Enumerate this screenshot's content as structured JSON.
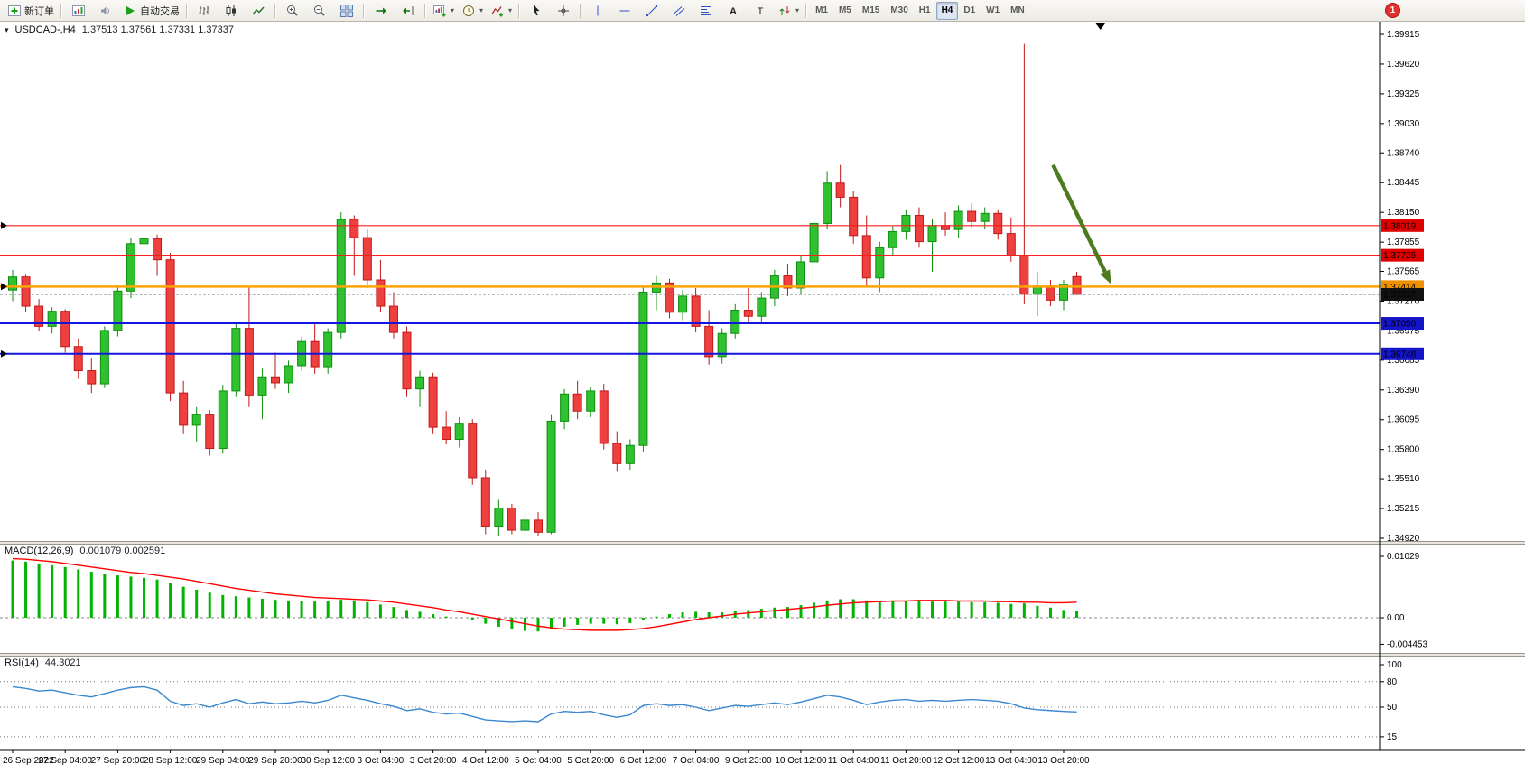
{
  "toolbar": {
    "groups": [
      [
        {
          "icon": "new-order-icon",
          "label": "新订单"
        }
      ],
      [
        {
          "icon": "charts-icon"
        },
        {
          "icon": "alerts-icon"
        },
        {
          "icon": "autotrading-icon",
          "label": "自动交易"
        }
      ],
      [
        {
          "icon": "bar-chart-icon"
        },
        {
          "icon": "candle-chart-icon"
        },
        {
          "icon": "line-chart-icon"
        }
      ],
      [
        {
          "icon": "zoom-in-icon"
        },
        {
          "icon": "zoom-out-icon"
        },
        {
          "icon": "tile-windows-icon"
        }
      ],
      [
        {
          "icon": "auto-scroll-icon"
        },
        {
          "icon": "chart-shift-icon"
        }
      ],
      [
        {
          "icon": "new-chart-icon",
          "dropdown": true
        },
        {
          "icon": "profiles-icon",
          "dropdown": true
        },
        {
          "icon": "indicators-icon",
          "dropdown": true
        }
      ],
      [
        {
          "icon": "cursor-icon"
        },
        {
          "icon": "crosshair-icon"
        }
      ],
      [
        {
          "icon": "vertical-line-icon"
        },
        {
          "icon": "horizontal-line-icon"
        },
        {
          "icon": "trendline-icon"
        },
        {
          "icon": "channel-icon"
        },
        {
          "icon": "fibonacci-icon"
        },
        {
          "icon": "text-icon"
        },
        {
          "icon": "label-icon"
        },
        {
          "icon": "arrows-icon",
          "dropdown": true
        }
      ]
    ],
    "timeframes": [
      "M1",
      "M5",
      "M15",
      "M30",
      "H1",
      "H4",
      "D1",
      "W1",
      "MN"
    ],
    "active_timeframe": "H4",
    "notification_badge": "1"
  },
  "chart_data": {
    "type": "candlestick",
    "title": "USDCAD-,H4",
    "ohlc_display": "1.37513 1.37561 1.37331 1.37337",
    "menu_icon": "▾",
    "colors": {
      "bull": "#2FC12F",
      "bull_border": "#0E8F0E",
      "bear": "#EF4040",
      "bear_border": "#C01818",
      "background": "#FFFFFF"
    },
    "price_axis": {
      "labels": [
        "1.39915",
        "1.39620",
        "1.39325",
        "1.39030",
        "1.38740",
        "1.38445",
        "1.38150",
        "1.37855",
        "1.37565",
        "1.37270",
        "1.36975",
        "1.36685",
        "1.36390",
        "1.36095",
        "1.35800",
        "1.35510",
        "1.35215",
        "1.34920"
      ],
      "max": 1.39915,
      "min": 1.3492
    },
    "hlines": [
      {
        "price": 1.38019,
        "label": "1.38019",
        "color": "#FF1E1E",
        "width": 1.2,
        "badge_bg": "#DF0000",
        "name": "resistance-line-1",
        "edge_marker": true
      },
      {
        "price": 1.37725,
        "label": "1.37725",
        "color": "#FF1E1E",
        "width": 1.2,
        "badge_bg": "#DF0000",
        "name": "resistance-line-2",
        "edge_marker": false
      },
      {
        "price": 1.37414,
        "label": "1.37414",
        "color": "#FFA500",
        "width": 2.5,
        "badge_bg": "#EE9000",
        "name": "pivot-line",
        "edge_marker": true
      },
      {
        "price": 1.3705,
        "label": "1.37050",
        "color": "#1414E0",
        "width": 2,
        "badge_bg": "#1414C8",
        "name": "support-line-1",
        "edge_marker": false
      },
      {
        "price": 1.36748,
        "label": "1.36748",
        "color": "#1414E0",
        "width": 2,
        "badge_bg": "#1414C8",
        "name": "support-line-2",
        "edge_marker": true
      }
    ],
    "current_price": {
      "price": 1.37337,
      "label": "1.37337",
      "badge_bg": "#111111",
      "line_color": "#777777"
    },
    "arrow_annotation": {
      "from_bar": 79.2,
      "from_price": 1.3862,
      "to_bar": 83.6,
      "to_price": 1.3744,
      "color": "#4E7B1F"
    },
    "chart_shift_marker_bar": 82.8,
    "bars_per_label": 4,
    "time_labels": [
      "26 Sep 2022",
      "27 Sep 04:00",
      "27 Sep 20:00",
      "28 Sep 12:00",
      "29 Sep 04:00",
      "29 Sep 20:00",
      "30 Sep 12:00",
      "3 Oct 04:00",
      "3 Oct 20:00",
      "4 Oct 12:00",
      "5 Oct 04:00",
      "5 Oct 20:00",
      "6 Oct 12:00",
      "7 Oct 04:00",
      "9 Oct 23:00",
      "10 Oct 12:00",
      "11 Oct 04:00",
      "11 Oct 20:00",
      "12 Oct 12:00",
      "13 Oct 04:00",
      "13 Oct 20:00"
    ],
    "candles": [
      [
        1.3738,
        1.3758,
        1.3727,
        1.3751
      ],
      [
        1.3751,
        1.3754,
        1.3716,
        1.3722
      ],
      [
        1.3722,
        1.3729,
        1.3697,
        1.3702
      ],
      [
        1.3702,
        1.3721,
        1.3695,
        1.3717
      ],
      [
        1.3717,
        1.3719,
        1.3676,
        1.3682
      ],
      [
        1.3682,
        1.369,
        1.365,
        1.3658
      ],
      [
        1.3658,
        1.3671,
        1.3636,
        1.3645
      ],
      [
        1.3645,
        1.3702,
        1.3641,
        1.3698
      ],
      [
        1.3698,
        1.3742,
        1.3692,
        1.3737
      ],
      [
        1.3737,
        1.379,
        1.373,
        1.3784
      ],
      [
        1.3784,
        1.3832,
        1.3776,
        1.3789
      ],
      [
        1.3789,
        1.3793,
        1.3752,
        1.3768
      ],
      [
        1.3768,
        1.3775,
        1.3628,
        1.3636
      ],
      [
        1.3636,
        1.3648,
        1.3596,
        1.3604
      ],
      [
        1.3604,
        1.3622,
        1.3588,
        1.3615
      ],
      [
        1.3615,
        1.3619,
        1.3574,
        1.3581
      ],
      [
        1.3581,
        1.3644,
        1.3576,
        1.3638
      ],
      [
        1.3638,
        1.3706,
        1.3632,
        1.37
      ],
      [
        1.37,
        1.3742,
        1.3622,
        1.3634
      ],
      [
        1.3634,
        1.366,
        1.361,
        1.3652
      ],
      [
        1.3652,
        1.3676,
        1.364,
        1.3646
      ],
      [
        1.3646,
        1.3668,
        1.3636,
        1.3663
      ],
      [
        1.3663,
        1.3692,
        1.3658,
        1.3687
      ],
      [
        1.3687,
        1.3705,
        1.3655,
        1.3662
      ],
      [
        1.3662,
        1.37,
        1.3655,
        1.3696
      ],
      [
        1.3696,
        1.3815,
        1.369,
        1.3808
      ],
      [
        1.3808,
        1.3812,
        1.3752,
        1.379
      ],
      [
        1.379,
        1.3798,
        1.374,
        1.3748
      ],
      [
        1.3748,
        1.3768,
        1.3716,
        1.3722
      ],
      [
        1.3722,
        1.3736,
        1.369,
        1.3696
      ],
      [
        1.3696,
        1.3702,
        1.3632,
        1.364
      ],
      [
        1.364,
        1.3658,
        1.3622,
        1.3652
      ],
      [
        1.3652,
        1.3656,
        1.3596,
        1.3602
      ],
      [
        1.3602,
        1.3618,
        1.3585,
        1.359
      ],
      [
        1.359,
        1.3612,
        1.3582,
        1.3606
      ],
      [
        1.3606,
        1.361,
        1.3545,
        1.3552
      ],
      [
        1.3552,
        1.356,
        1.3496,
        1.3504
      ],
      [
        1.3504,
        1.353,
        1.3494,
        1.3522
      ],
      [
        1.3522,
        1.3526,
        1.3496,
        1.35
      ],
      [
        1.35,
        1.3516,
        1.3492,
        1.351
      ],
      [
        1.351,
        1.3518,
        1.3494,
        1.3498
      ],
      [
        1.3498,
        1.3615,
        1.3496,
        1.3608
      ],
      [
        1.3608,
        1.364,
        1.36,
        1.3635
      ],
      [
        1.3635,
        1.3648,
        1.361,
        1.3618
      ],
      [
        1.3618,
        1.3642,
        1.3612,
        1.3638
      ],
      [
        1.3638,
        1.3645,
        1.358,
        1.3586
      ],
      [
        1.3586,
        1.3598,
        1.3558,
        1.3566
      ],
      [
        1.3566,
        1.359,
        1.356,
        1.3584
      ],
      [
        1.3584,
        1.3742,
        1.3578,
        1.3736
      ],
      [
        1.3736,
        1.3752,
        1.3718,
        1.3745
      ],
      [
        1.3745,
        1.3749,
        1.371,
        1.3716
      ],
      [
        1.3716,
        1.3738,
        1.3708,
        1.3732
      ],
      [
        1.3732,
        1.374,
        1.3696,
        1.3702
      ],
      [
        1.3702,
        1.3718,
        1.3664,
        1.3672
      ],
      [
        1.3672,
        1.37,
        1.3665,
        1.3695
      ],
      [
        1.3695,
        1.3724,
        1.369,
        1.3718
      ],
      [
        1.3718,
        1.374,
        1.3706,
        1.3712
      ],
      [
        1.3712,
        1.3736,
        1.3704,
        1.373
      ],
      [
        1.373,
        1.3758,
        1.3722,
        1.3752
      ],
      [
        1.3752,
        1.3764,
        1.3732,
        1.374
      ],
      [
        1.374,
        1.3772,
        1.3734,
        1.3766
      ],
      [
        1.3766,
        1.381,
        1.376,
        1.3804
      ],
      [
        1.3804,
        1.3856,
        1.3798,
        1.3844
      ],
      [
        1.3844,
        1.3862,
        1.382,
        1.383
      ],
      [
        1.383,
        1.3836,
        1.3784,
        1.3792
      ],
      [
        1.3792,
        1.3812,
        1.3742,
        1.375
      ],
      [
        1.375,
        1.3786,
        1.3736,
        1.378
      ],
      [
        1.378,
        1.3802,
        1.3772,
        1.3796
      ],
      [
        1.3796,
        1.3818,
        1.3788,
        1.3812
      ],
      [
        1.3812,
        1.382,
        1.378,
        1.3786
      ],
      [
        1.3786,
        1.3808,
        1.3756,
        1.3802
      ],
      [
        1.3802,
        1.3815,
        1.3792,
        1.3798
      ],
      [
        1.3798,
        1.3822,
        1.379,
        1.3816
      ],
      [
        1.3816,
        1.3824,
        1.38,
        1.3806
      ],
      [
        1.3806,
        1.382,
        1.3798,
        1.3814
      ],
      [
        1.3814,
        1.3818,
        1.3788,
        1.3794
      ],
      [
        1.3794,
        1.381,
        1.3766,
        1.3772
      ],
      [
        1.3772,
        1.3982,
        1.3724,
        1.3734
      ],
      [
        1.3734,
        1.3756,
        1.3712,
        1.3742
      ],
      [
        1.3742,
        1.3748,
        1.3722,
        1.3728
      ],
      [
        1.3728,
        1.3748,
        1.3718,
        1.3744
      ],
      [
        1.37513,
        1.37561,
        1.37331,
        1.37337
      ]
    ],
    "indicators": [
      {
        "name": "MACD",
        "title": "MACD(12,26,9)",
        "values_display": "0.001079 0.002591",
        "scale_labels": [
          "0.01029",
          "0.00",
          "-0.004453"
        ],
        "scale_values": [
          0.01029,
          0,
          -0.004453
        ],
        "histogram_color": "#00B400",
        "signal_color": "#FF0000",
        "histogram": [
          0.0096,
          0.0094,
          0.0091,
          0.0088,
          0.0085,
          0.0081,
          0.0077,
          0.0074,
          0.0071,
          0.0069,
          0.0067,
          0.0064,
          0.0058,
          0.0052,
          0.0047,
          0.0042,
          0.0038,
          0.0036,
          0.0034,
          0.0032,
          0.003,
          0.0029,
          0.0028,
          0.0027,
          0.0028,
          0.003,
          0.0029,
          0.0026,
          0.0022,
          0.0018,
          0.0013,
          0.001,
          0.0006,
          0.0002,
          0.0,
          -0.0004,
          -0.001,
          -0.0015,
          -0.0019,
          -0.0022,
          -0.0023,
          -0.0019,
          -0.0015,
          -0.0012,
          -0.001,
          -0.001,
          -0.0011,
          -0.0009,
          -0.0004,
          0.0002,
          0.0006,
          0.0009,
          0.001,
          0.0009,
          0.0009,
          0.0011,
          0.0013,
          0.0015,
          0.0017,
          0.0018,
          0.0021,
          0.0025,
          0.0029,
          0.0031,
          0.0031,
          0.0029,
          0.0028,
          0.0028,
          0.0028,
          0.0028,
          0.0027,
          0.0027,
          0.0027,
          0.0026,
          0.0026,
          0.0025,
          0.0023,
          0.0024,
          0.002,
          0.0017,
          0.0013,
          0.0011
        ],
        "signal": [
          0.0099,
          0.0098,
          0.0096,
          0.0094,
          0.0091,
          0.0088,
          0.0085,
          0.0082,
          0.0079,
          0.0076,
          0.0074,
          0.0071,
          0.0068,
          0.0065,
          0.0061,
          0.0057,
          0.0053,
          0.0049,
          0.0046,
          0.0043,
          0.004,
          0.0038,
          0.0036,
          0.0034,
          0.0033,
          0.0032,
          0.0031,
          0.003,
          0.0028,
          0.0026,
          0.0023,
          0.002,
          0.0017,
          0.0013,
          0.001,
          0.0006,
          0.0002,
          -0.0002,
          -0.0006,
          -0.001,
          -0.0014,
          -0.0017,
          -0.0019,
          -0.002,
          -0.0021,
          -0.0021,
          -0.0021,
          -0.002,
          -0.0018,
          -0.0015,
          -0.0011,
          -0.0007,
          -0.0003,
          0.0,
          0.0003,
          0.0006,
          0.0008,
          0.001,
          0.0012,
          0.0014,
          0.0016,
          0.0018,
          0.0021,
          0.0023,
          0.0025,
          0.0026,
          0.0027,
          0.0028,
          0.0028,
          0.0029,
          0.0029,
          0.0029,
          0.0028,
          0.0028,
          0.0028,
          0.0027,
          0.0027,
          0.0026,
          0.0026,
          0.0025,
          0.0025,
          0.0026
        ]
      },
      {
        "name": "RSI",
        "title": "RSI(14)",
        "value_display": "44.3021",
        "scale_labels": [
          "100",
          "80",
          "50",
          "15"
        ],
        "scale_values": [
          100,
          80,
          50,
          15
        ],
        "levels": [
          80,
          50,
          15
        ],
        "color": "#3A87CF",
        "values": [
          74,
          72,
          69,
          70,
          67,
          64,
          62,
          66,
          70,
          73,
          74,
          70,
          57,
          52,
          54,
          50,
          55,
          59,
          54,
          56,
          54,
          55,
          57,
          55,
          58,
          64,
          61,
          58,
          54,
          51,
          46,
          48,
          44,
          42,
          43,
          39,
          35,
          34,
          33,
          34,
          33,
          42,
          45,
          44,
          45,
          41,
          38,
          41,
          52,
          54,
          52,
          53,
          50,
          46,
          49,
          52,
          51,
          53,
          55,
          53,
          56,
          60,
          64,
          62,
          58,
          53,
          56,
          58,
          59,
          57,
          58,
          57,
          58,
          59,
          58,
          57,
          54,
          49,
          47,
          46,
          45,
          44.3
        ]
      }
    ]
  }
}
